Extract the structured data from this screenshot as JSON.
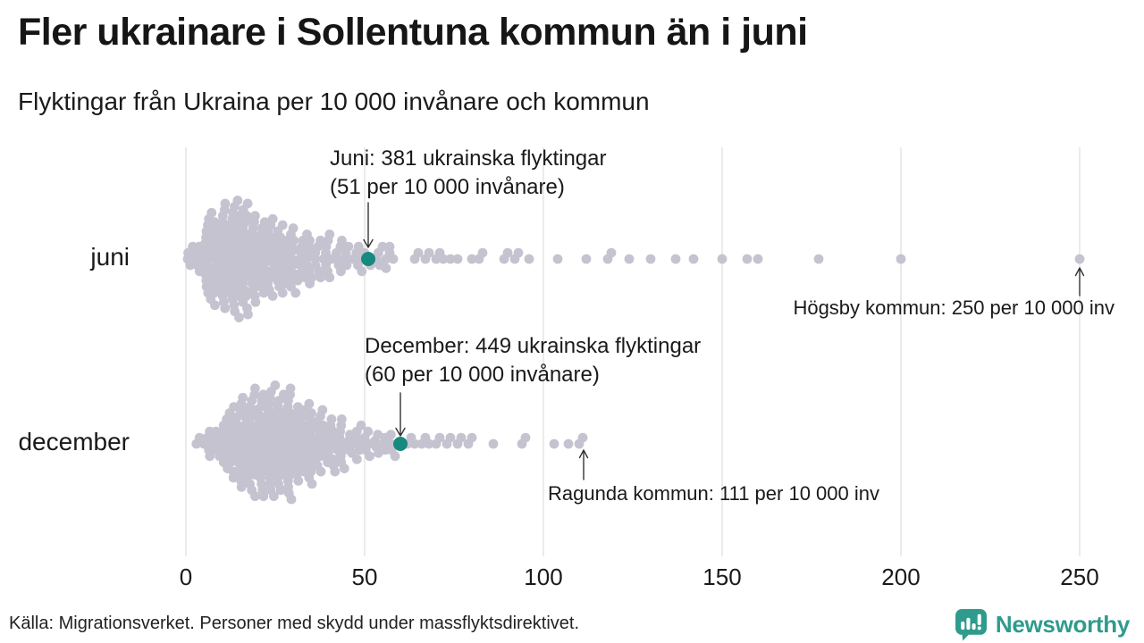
{
  "header": {
    "title": "Fler ukrainare i Sollentuna kommun än i juni",
    "subtitle": "Flyktingar från Ukraina per 10 000 invånare och kommun"
  },
  "footer": {
    "source": "Källa: Migrationsverket. Personer med skydd under massflyktsdirektivet.",
    "brand": "Newsworthy"
  },
  "colors": {
    "dot": "#c5c3d0",
    "highlight": "#18897f",
    "gridline": "#d7d7d7",
    "arrow": "#333333",
    "brand": "#2f9b8c",
    "text": "#1a1a1a"
  },
  "chart_data": {
    "type": "beeswarm",
    "title": "Fler ukrainare i Sollentuna kommun än i juni",
    "subtitle": "Flyktingar från Ukraina per 10 000 invånare och kommun",
    "xlabel": "",
    "unit": "flyktingar per 10 000 invånare per kommun",
    "xticks": [
      0,
      50,
      100,
      150,
      200,
      250
    ],
    "xlim": [
      0,
      260
    ],
    "grid": true,
    "rows": [
      {
        "label": "juni",
        "highlight": {
          "value": 51,
          "annotation": [
            "Juni: 381 ukrainska flyktingar",
            "(51 per 10 000 invånare)"
          ]
        },
        "outlier_annotation": {
          "value": 250,
          "text": "Högsby kommun: 250 per 10 000 inv"
        },
        "bins": [
          [
            0,
            10
          ],
          [
            5,
            38
          ],
          [
            10,
            46
          ],
          [
            15,
            40
          ],
          [
            20,
            32
          ],
          [
            25,
            26
          ],
          [
            30,
            20
          ],
          [
            35,
            15
          ],
          [
            40,
            11
          ],
          [
            45,
            8
          ],
          [
            50,
            6
          ]
        ],
        "values": [
          55,
          56,
          56,
          57,
          57,
          58,
          64,
          65,
          67,
          68,
          70,
          71,
          72,
          74,
          76,
          80,
          82,
          83,
          89,
          90,
          92,
          93,
          96,
          104,
          112,
          118,
          119,
          124,
          130,
          137,
          142,
          150,
          157,
          160,
          177,
          200,
          250
        ]
      },
      {
        "label": "december",
        "highlight": {
          "value": 60,
          "annotation": [
            "December: 449 ukrainska flyktingar",
            "(60 per 10 000 invånare)"
          ]
        },
        "outlier_annotation": {
          "value": 111,
          "text": "Ragunda kommun: 111 per 10 000 inv"
        },
        "bins": [
          [
            2,
            3
          ],
          [
            5,
            10
          ],
          [
            10,
            28
          ],
          [
            15,
            40
          ],
          [
            20,
            44
          ],
          [
            25,
            40
          ],
          [
            30,
            32
          ],
          [
            35,
            26
          ],
          [
            40,
            18
          ],
          [
            45,
            12
          ],
          [
            50,
            9
          ],
          [
            55,
            7
          ]
        ],
        "values": [
          62,
          63,
          64,
          66,
          67,
          68,
          70,
          71,
          73,
          74,
          76,
          77,
          79,
          80,
          86,
          94,
          95,
          103,
          107,
          110,
          111
        ]
      }
    ]
  }
}
